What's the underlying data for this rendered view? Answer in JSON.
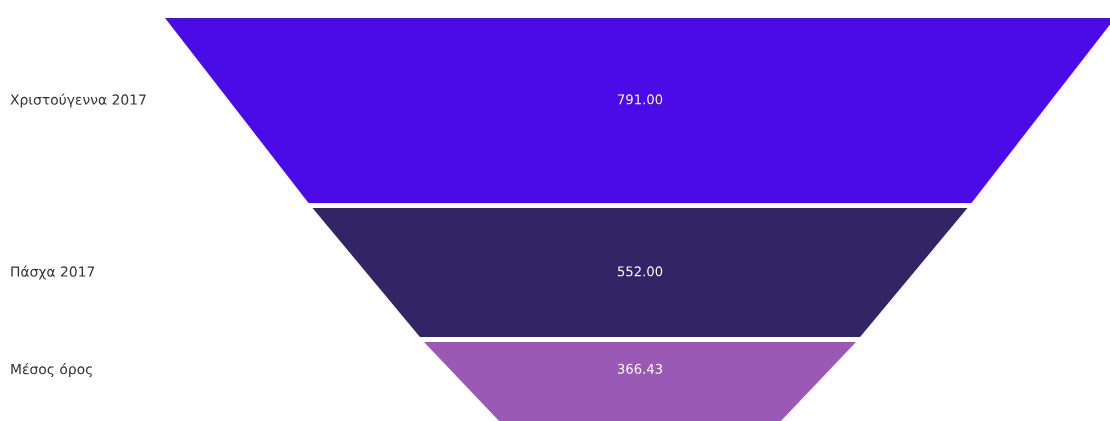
{
  "chart_data": {
    "type": "other",
    "categories": [
      "Χριστούγεννα 2017",
      "Πάσχα 2017",
      "Μέσος όρος"
    ],
    "values": [
      791.0,
      552.0,
      366.43
    ],
    "value_labels": [
      "791.00",
      "552.00",
      "366.43"
    ],
    "colors": [
      "#4b0be6",
      "#312566",
      "#9b59b6"
    ]
  }
}
